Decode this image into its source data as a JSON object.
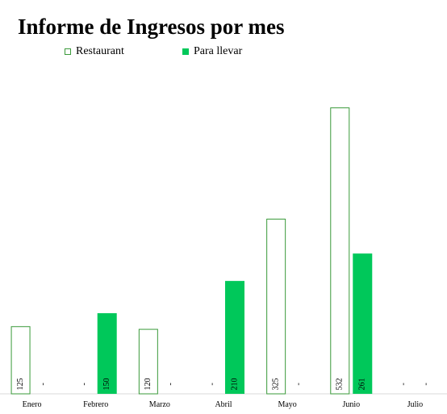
{
  "chart_data": {
    "type": "bar",
    "title": "Informe de Ingresos por mes",
    "categories": [
      "Enero",
      "Febrero",
      "Marzo",
      "Abril",
      "Mayo",
      "Junio",
      "Julio"
    ],
    "series": [
      {
        "name": "Restaurant",
        "values": [
          125,
          null,
          120,
          null,
          325,
          532,
          null
        ],
        "labels": [
          "125",
          "-",
          "120",
          "-",
          "325",
          "532",
          "-"
        ],
        "style": "outline",
        "color": "#3a9a3a"
      },
      {
        "name": "Para llevar",
        "values": [
          null,
          150,
          null,
          210,
          null,
          261,
          null
        ],
        "labels": [
          "-",
          "150",
          "-",
          "210",
          "-",
          "261",
          "-"
        ],
        "style": "filled",
        "color": "#00c85a"
      }
    ],
    "ylim": [
      0,
      560
    ],
    "xlabel": "",
    "ylabel": "",
    "grid": false,
    "legend": "top-left"
  }
}
